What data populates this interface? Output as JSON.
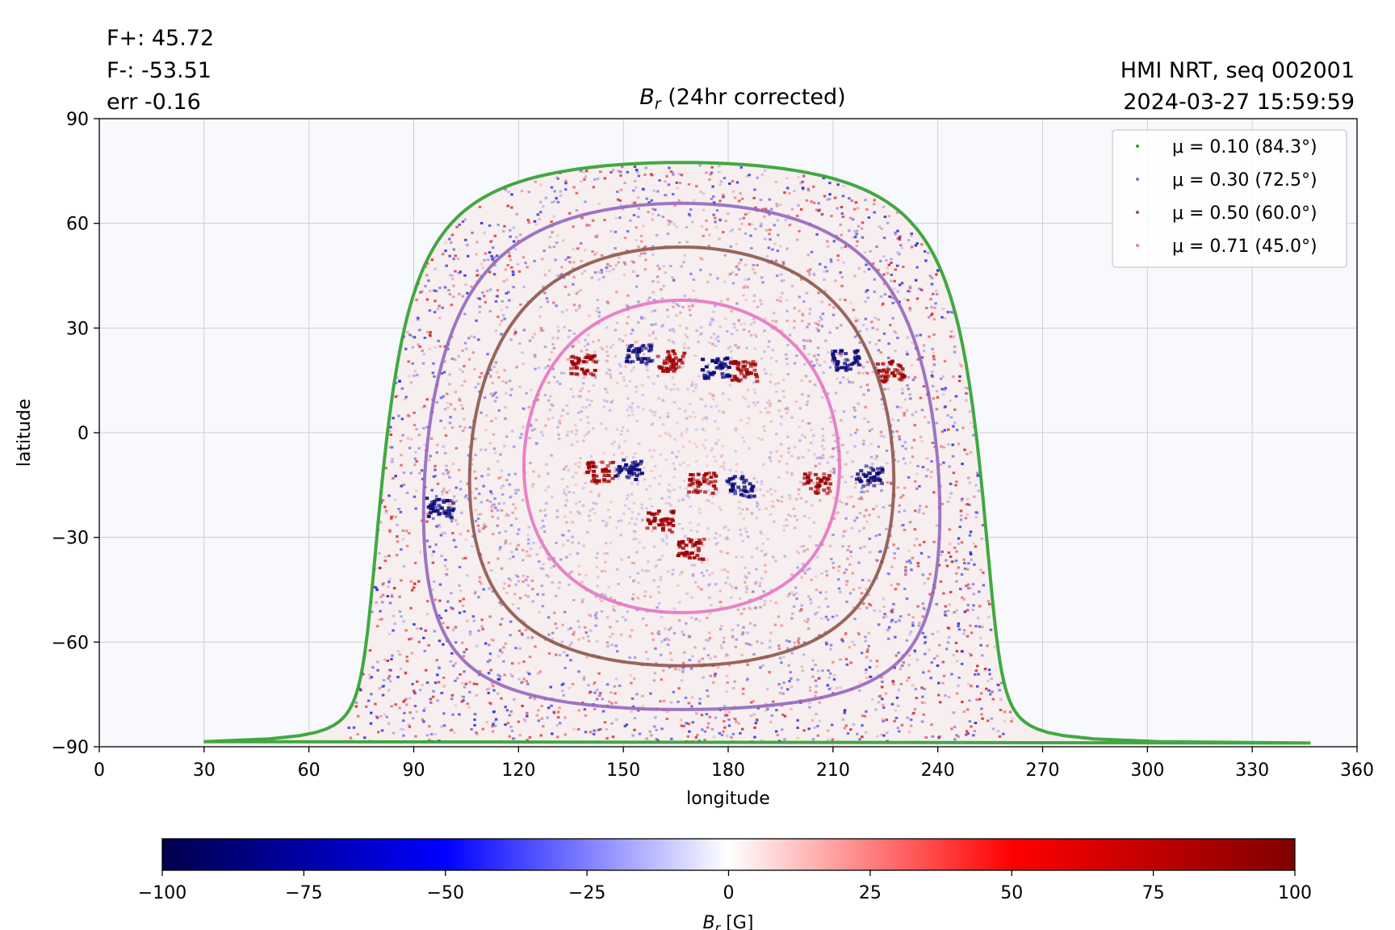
{
  "stats": {
    "f_plus": "F+: 45.72",
    "f_minus": "F-: -53.51",
    "err": "err -0.16"
  },
  "source": {
    "line1": "HMI NRT, seq 002001",
    "line2": "2024-03-27 15:59:59"
  },
  "chart_data": {
    "type": "heatmap",
    "title_prefix": "B",
    "title_sub": "r",
    "title_suffix": " (24hr corrected)",
    "xlabel": "longitude",
    "ylabel": "latitude",
    "xlim": [
      0,
      360
    ],
    "ylim": [
      -90,
      90
    ],
    "xticks": [
      0,
      30,
      60,
      90,
      120,
      150,
      180,
      210,
      240,
      270,
      300,
      330,
      360
    ],
    "yticks": [
      90,
      60,
      30,
      0,
      -30,
      -60,
      -90
    ],
    "ytick_labels": [
      "90",
      "60",
      "30",
      "0",
      "−30",
      "−60",
      "−90"
    ],
    "grid": true,
    "background_color": "#f8f9fc",
    "disk": {
      "center_lon": 166.7,
      "center_lat": -6.8,
      "limb_half_width_lon": 90
    },
    "active_regions": [
      {
        "lon": 138,
        "lat": 20,
        "polarity": "positive"
      },
      {
        "lon": 154,
        "lat": 23,
        "polarity": "negative"
      },
      {
        "lon": 163,
        "lat": 21,
        "polarity": "positive"
      },
      {
        "lon": 176,
        "lat": 19,
        "polarity": "negative"
      },
      {
        "lon": 184,
        "lat": 18,
        "polarity": "positive"
      },
      {
        "lon": 213,
        "lat": 21,
        "polarity": "negative"
      },
      {
        "lon": 226,
        "lat": 18,
        "polarity": "positive"
      },
      {
        "lon": 205,
        "lat": -14,
        "polarity": "positive"
      },
      {
        "lon": 220,
        "lat": -12,
        "polarity": "negative"
      },
      {
        "lon": 183,
        "lat": -15,
        "polarity": "negative"
      },
      {
        "lon": 172,
        "lat": -14,
        "polarity": "positive"
      },
      {
        "lon": 151,
        "lat": -10,
        "polarity": "negative"
      },
      {
        "lon": 143,
        "lat": -11,
        "polarity": "positive"
      },
      {
        "lon": 97,
        "lat": -21,
        "polarity": "negative"
      },
      {
        "lon": 169,
        "lat": -33,
        "polarity": "positive"
      },
      {
        "lon": 160,
        "lat": -25,
        "polarity": "positive"
      }
    ],
    "series": [
      {
        "name": "μ = 0.10 (84.3°)",
        "mu": 0.1,
        "angle_deg": 84.3,
        "color": "#2ca02c"
      },
      {
        "name": "μ = 0.30 (72.5°)",
        "mu": 0.3,
        "angle_deg": 72.5,
        "color": "#9467bd"
      },
      {
        "name": "μ = 0.50 (60.0°)",
        "mu": 0.5,
        "angle_deg": 60.0,
        "color": "#8c564b"
      },
      {
        "name": "μ = 0.71 (45.0°)",
        "mu": 0.71,
        "angle_deg": 45.0,
        "color": "#e377c2"
      }
    ],
    "legend_position": "top-right",
    "colorbar": {
      "label_prefix": "B",
      "label_sub": "r",
      "label_suffix": " [G]",
      "vmin": -100,
      "vmax": 100,
      "ticks": [
        -100,
        -75,
        -50,
        -25,
        0,
        25,
        50,
        75,
        100
      ],
      "tick_labels": [
        "−100",
        "−75",
        "−50",
        "−25",
        "0",
        "25",
        "50",
        "75",
        "100"
      ],
      "colormap": "seismic",
      "colors": [
        "#00004c",
        "#0000ff",
        "#ffffff",
        "#ff0000",
        "#800000"
      ]
    }
  }
}
